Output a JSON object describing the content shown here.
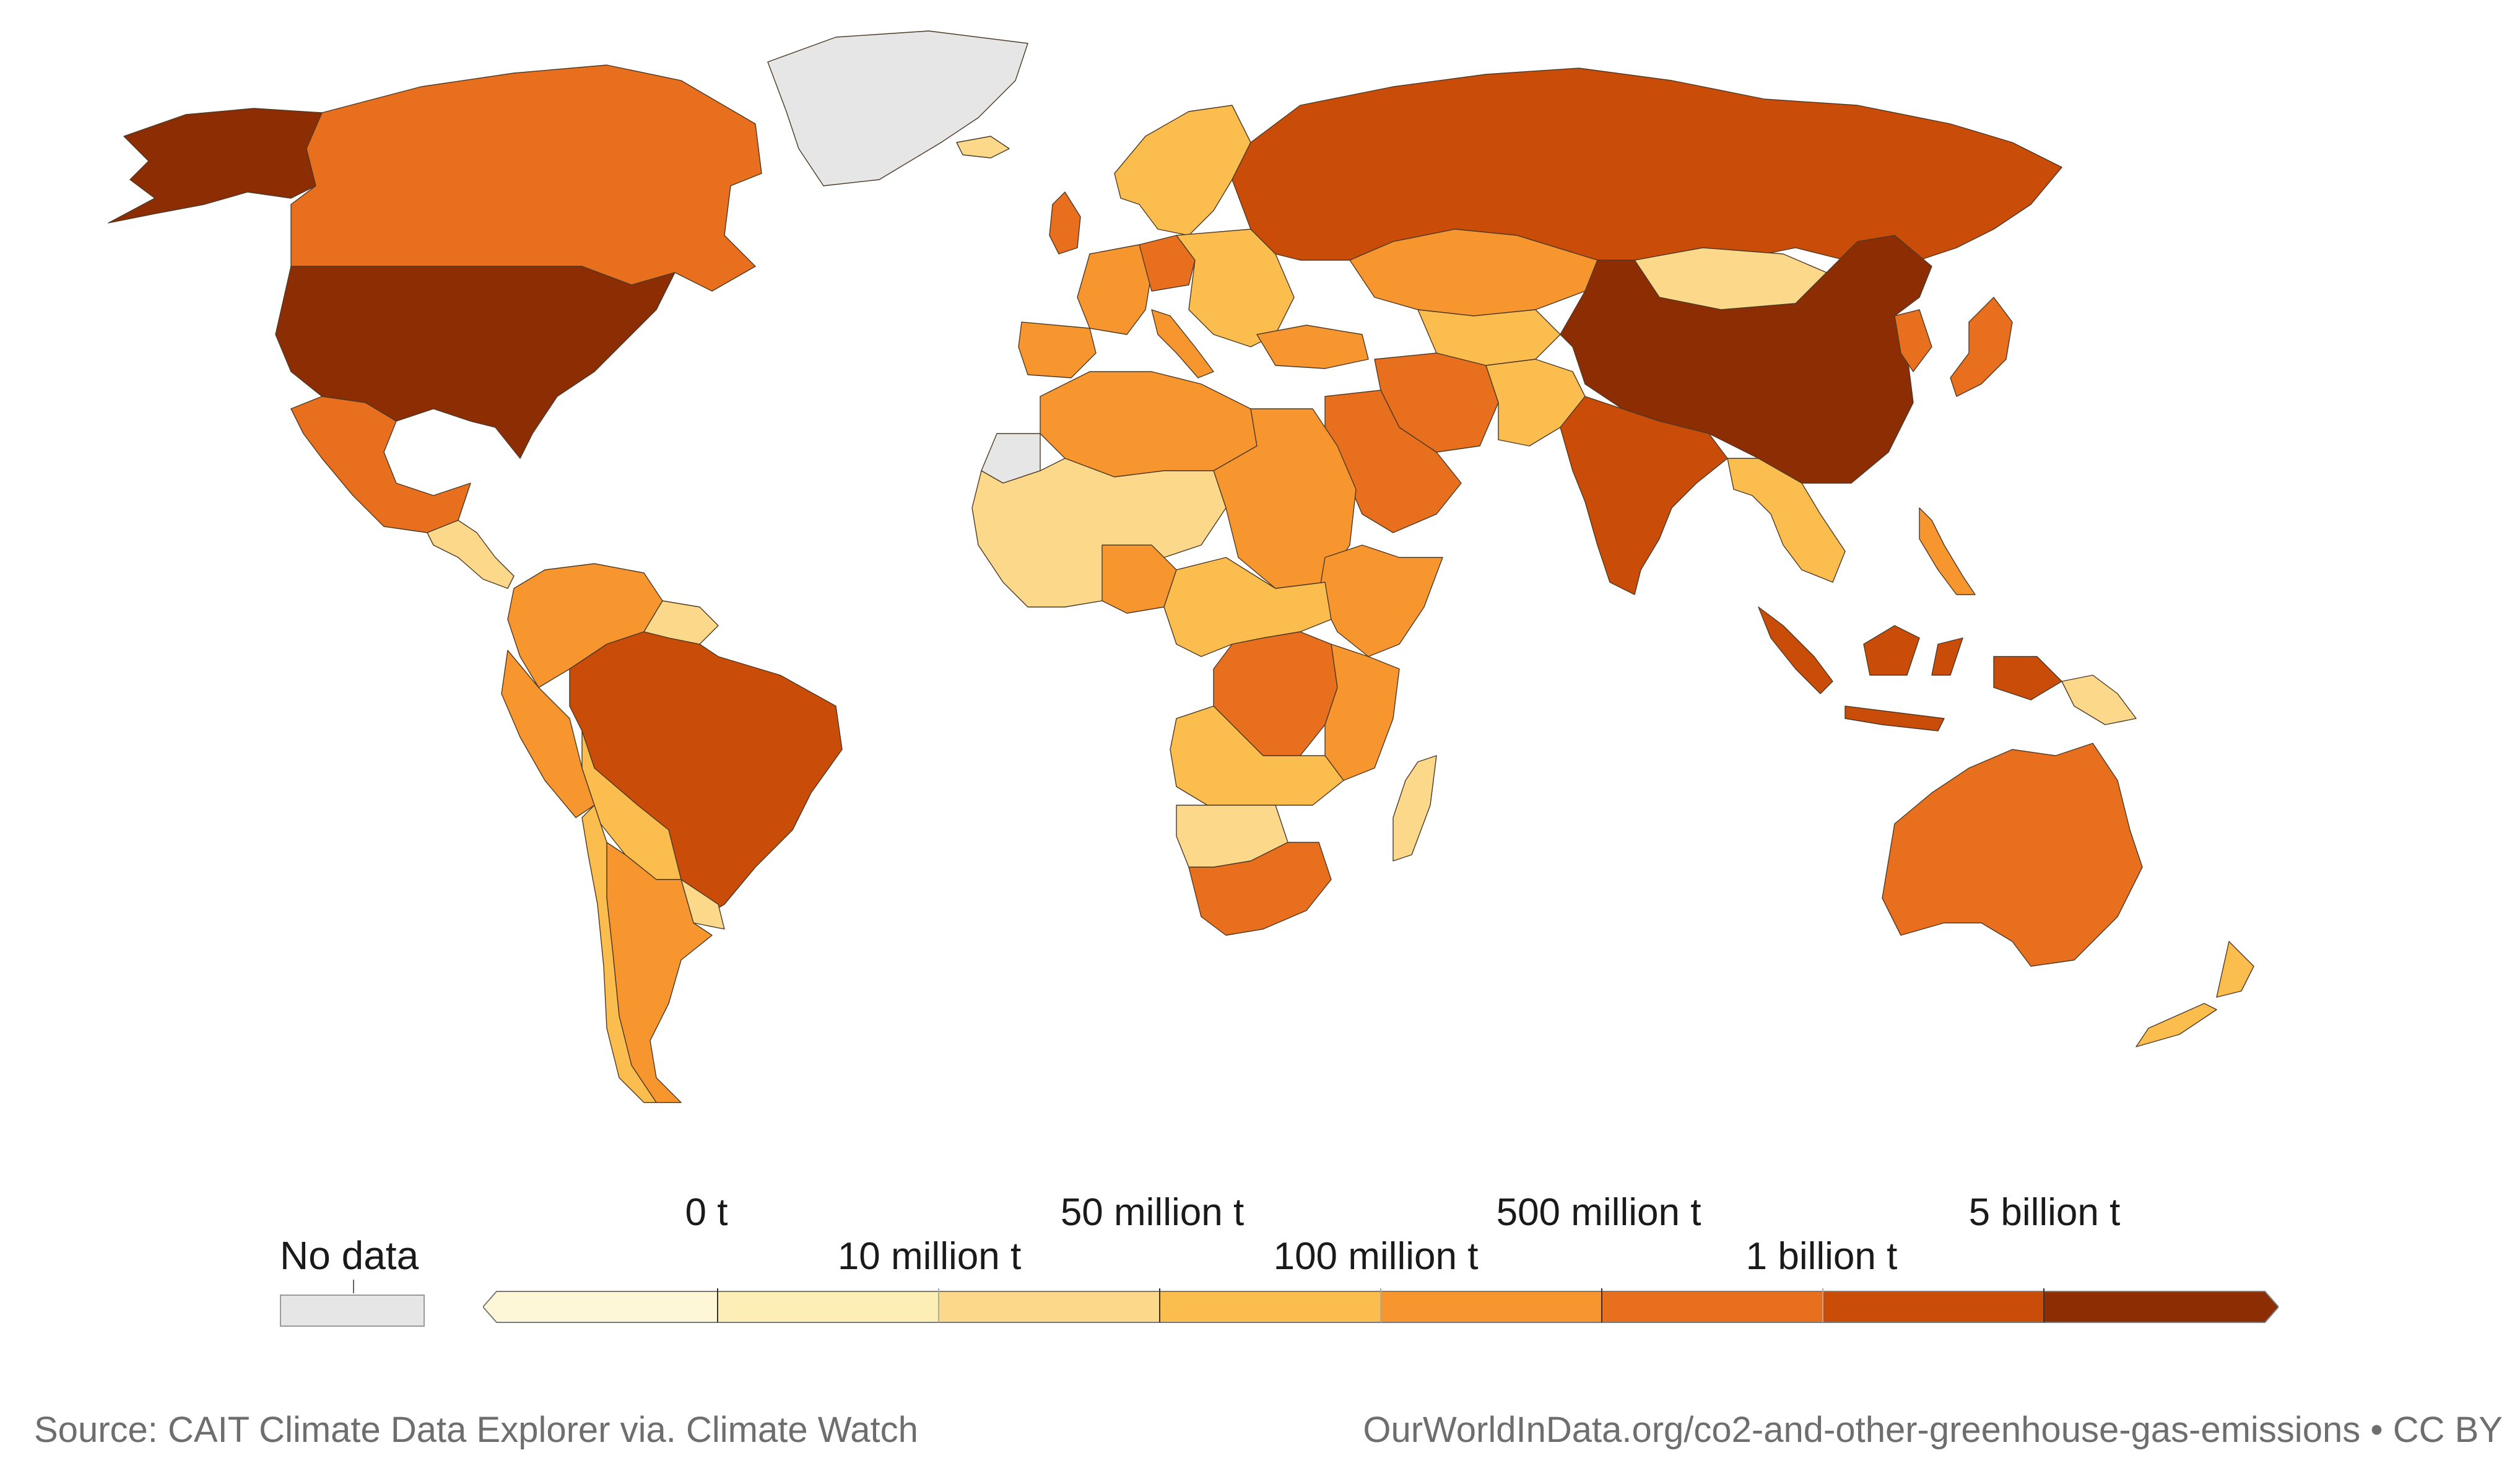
{
  "legend": {
    "no_data_label": "No data",
    "no_data_color": "#e6e6e6",
    "bins": [
      {
        "color": "#fef7d7"
      },
      {
        "color": "#fdeeb5"
      },
      {
        "color": "#fcd98a"
      },
      {
        "color": "#fbbd4e"
      },
      {
        "color": "#f7962e"
      },
      {
        "color": "#e76f1e"
      },
      {
        "color": "#c94c09"
      },
      {
        "color": "#8c2d04"
      }
    ],
    "upper_ticks": [
      "0 t",
      "50 million t",
      "500 million t",
      "5 billion t"
    ],
    "lower_ticks": [
      "10 million t",
      "100 million t",
      "1 billion t"
    ]
  },
  "footer": {
    "source": "Source: CAIT Climate Data Explorer via. Climate Watch",
    "url": "OurWorldInData.org/co2-and-other-greenhouse-gas-emissions • CC BY"
  },
  "regions": [
    {
      "name": "alaska",
      "color": "#8c2d04"
    },
    {
      "name": "canada",
      "color": "#e76f1e"
    },
    {
      "name": "greenland",
      "color": "#e6e6e6"
    },
    {
      "name": "united-states",
      "color": "#8c2d04"
    },
    {
      "name": "mexico",
      "color": "#e76f1e"
    },
    {
      "name": "central-america",
      "color": "#fcd98a"
    },
    {
      "name": "colombia-venezuela",
      "color": "#f7962e"
    },
    {
      "name": "guianas",
      "color": "#fcd98a"
    },
    {
      "name": "peru-ecuador",
      "color": "#f7962e"
    },
    {
      "name": "brazil",
      "color": "#c94c09"
    },
    {
      "name": "bolivia-paraguay",
      "color": "#fbbd4e"
    },
    {
      "name": "argentina",
      "color": "#f7962e"
    },
    {
      "name": "chile",
      "color": "#fbbd4e"
    },
    {
      "name": "uruguay",
      "color": "#fcd98a"
    },
    {
      "name": "iceland",
      "color": "#fcd98a"
    },
    {
      "name": "scandinavia",
      "color": "#fbbd4e"
    },
    {
      "name": "united-kingdom",
      "color": "#e76f1e"
    },
    {
      "name": "western-europe",
      "color": "#f7962e"
    },
    {
      "name": "germany",
      "color": "#e76f1e"
    },
    {
      "name": "iberia",
      "color": "#f7962e"
    },
    {
      "name": "italy",
      "color": "#f7962e"
    },
    {
      "name": "eastern-europe",
      "color": "#fbbd4e"
    },
    {
      "name": "turkey",
      "color": "#f7962e"
    },
    {
      "name": "russia",
      "color": "#c94c09"
    },
    {
      "name": "kazakhstan",
      "color": "#f7962e"
    },
    {
      "name": "central-asia",
      "color": "#fbbd4e"
    },
    {
      "name": "mongolia",
      "color": "#fcd98a"
    },
    {
      "name": "china",
      "color": "#8c2d04"
    },
    {
      "name": "korea",
      "color": "#e76f1e"
    },
    {
      "name": "japan",
      "color": "#e76f1e"
    },
    {
      "name": "iran",
      "color": "#e76f1e"
    },
    {
      "name": "arabian-peninsula",
      "color": "#e76f1e"
    },
    {
      "name": "pakistan-afghanistan",
      "color": "#fbbd4e"
    },
    {
      "name": "india",
      "color": "#c94c09"
    },
    {
      "name": "southeast-asia",
      "color": "#fbbd4e"
    },
    {
      "name": "philippines",
      "color": "#f7962e"
    },
    {
      "name": "indonesia",
      "color": "#c94c09"
    },
    {
      "name": "papua-new-guinea",
      "color": "#fcd98a"
    },
    {
      "name": "australia",
      "color": "#e76f1e"
    },
    {
      "name": "new-zealand",
      "color": "#fbbd4e"
    },
    {
      "name": "north-africa",
      "color": "#f7962e"
    },
    {
      "name": "egypt-sudan",
      "color": "#f7962e"
    },
    {
      "name": "western-sahara",
      "color": "#e6e6e6"
    },
    {
      "name": "sahel-west-africa",
      "color": "#fcd98a"
    },
    {
      "name": "nigeria",
      "color": "#f7962e"
    },
    {
      "name": "ethiopia-horn",
      "color": "#f7962e"
    },
    {
      "name": "central-africa",
      "color": "#fbbd4e"
    },
    {
      "name": "dr-congo",
      "color": "#e76f1e"
    },
    {
      "name": "east-africa",
      "color": "#f7962e"
    },
    {
      "name": "angola-zambia",
      "color": "#fbbd4e"
    },
    {
      "name": "namibia-botswana",
      "color": "#fcd98a"
    },
    {
      "name": "south-africa",
      "color": "#e76f1e"
    },
    {
      "name": "madagascar",
      "color": "#fcd98a"
    }
  ]
}
